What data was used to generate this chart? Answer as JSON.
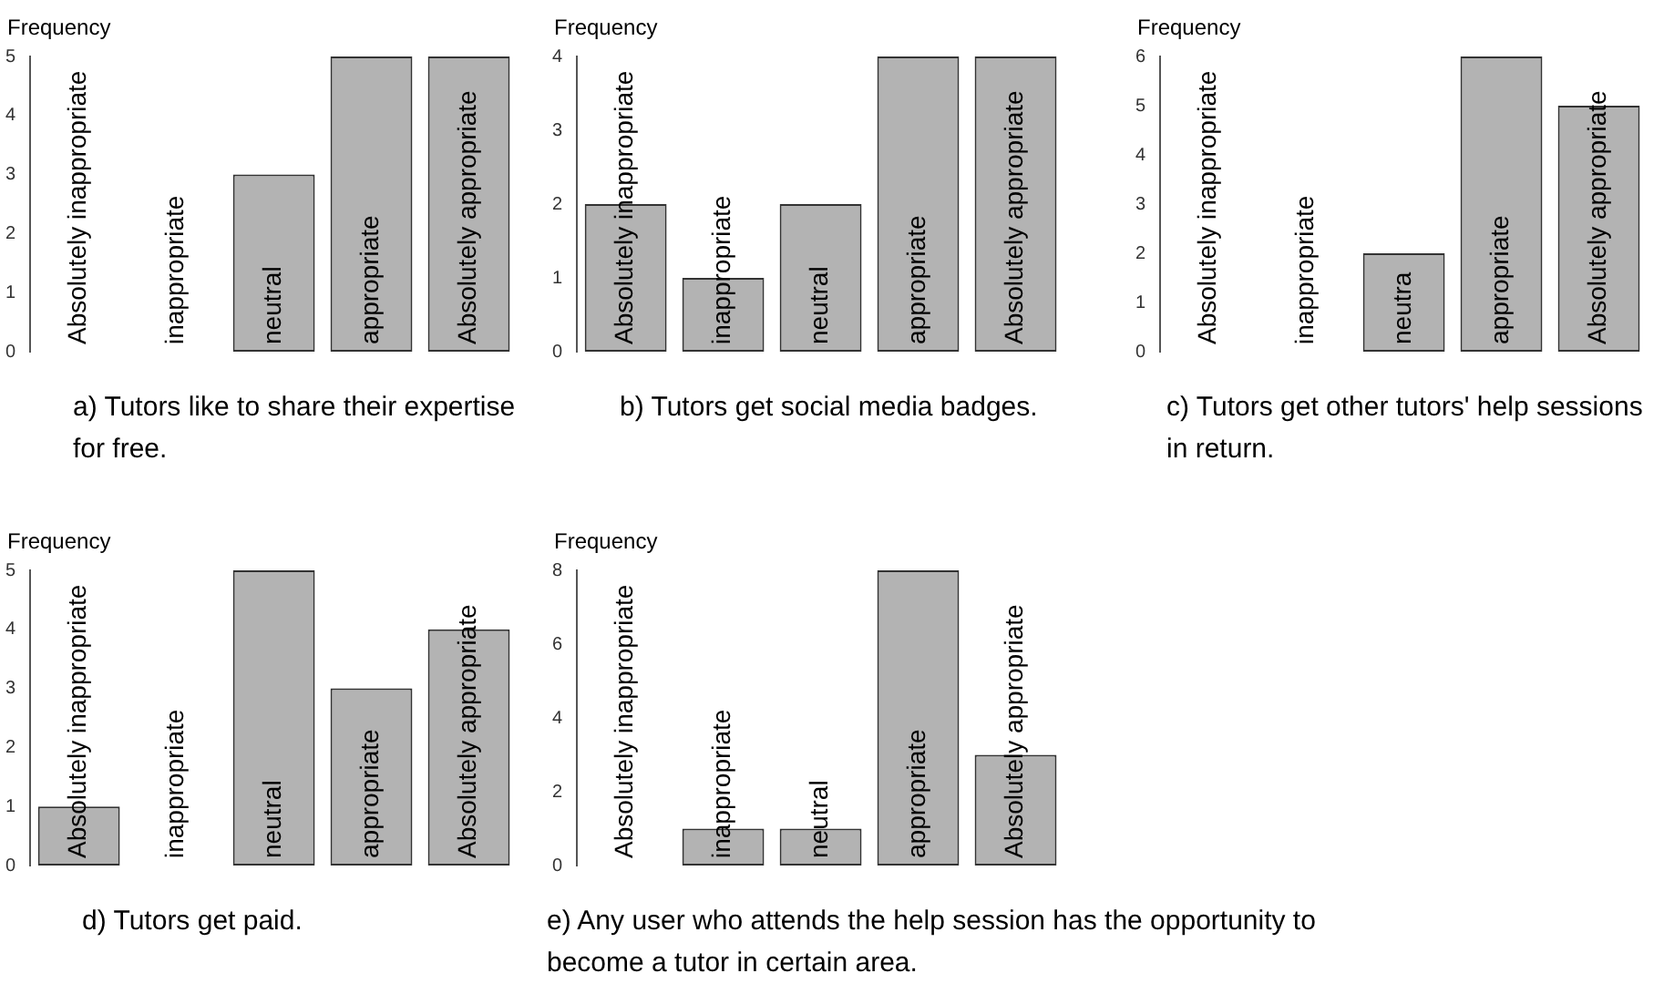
{
  "chart_data": [
    {
      "type": "bar",
      "title": "a) Tutors like to share their expertise for free.",
      "ylabel": "Frequency",
      "categories": [
        "Absolutely inappropriate",
        "inappropriate",
        "neutral",
        "appropriate",
        "Absolutely appropriate"
      ],
      "values": [
        0,
        0,
        3,
        5,
        5
      ],
      "color": "#b3b3b3",
      "ylim": [
        0,
        5
      ],
      "yticks": [
        0,
        1,
        2,
        3,
        4,
        5
      ],
      "grid": false
    },
    {
      "type": "bar",
      "title": "b) Tutors get social media badges.",
      "ylabel": "Frequency",
      "categories": [
        "Absolutely inappropriate",
        "inappropriate",
        "neutral",
        "appropriate",
        "Absolutely appropriate"
      ],
      "values": [
        2,
        1,
        2,
        4,
        4
      ],
      "color": "#b3b3b3",
      "ylim": [
        0,
        4
      ],
      "yticks": [
        0,
        1,
        2,
        3,
        4
      ],
      "grid": false
    },
    {
      "type": "bar",
      "title": "c) Tutors get other tutors' help sessions in return.",
      "ylabel": "Frequency",
      "categories": [
        "Absolutely inappropriate",
        "inappropriate",
        "neutra",
        "appropriate",
        "Absolutely appropriate"
      ],
      "values": [
        0,
        0,
        2,
        6,
        5
      ],
      "color": "#b3b3b3",
      "ylim": [
        0,
        6
      ],
      "yticks": [
        0,
        1,
        2,
        3,
        4,
        5,
        6
      ],
      "grid": false
    },
    {
      "type": "bar",
      "title": "d) Tutors get paid.",
      "ylabel": "Frequency",
      "categories": [
        "Absolutely inappropriate",
        "inappropriate",
        "neutral",
        "appropriate",
        "Absolutely appropriate"
      ],
      "values": [
        1,
        0,
        5,
        3,
        4
      ],
      "color": "#b3b3b3",
      "ylim": [
        0,
        5
      ],
      "yticks": [
        0,
        1,
        2,
        3,
        4,
        5
      ],
      "grid": false
    },
    {
      "type": "bar",
      "title": "e) Any user who attends the help session has the opportunity to become a tutor in certain area.",
      "ylabel": "Frequency",
      "categories": [
        "Absolutely inappropriate",
        "inappropriate",
        "neutral",
        "appropriate",
        "Absolutely appropriate"
      ],
      "values": [
        0,
        1,
        1,
        8,
        3
      ],
      "color": "#b3b3b3",
      "ylim": [
        0,
        8
      ],
      "yticks": [
        0,
        2,
        4,
        6,
        8
      ],
      "grid": false
    }
  ]
}
